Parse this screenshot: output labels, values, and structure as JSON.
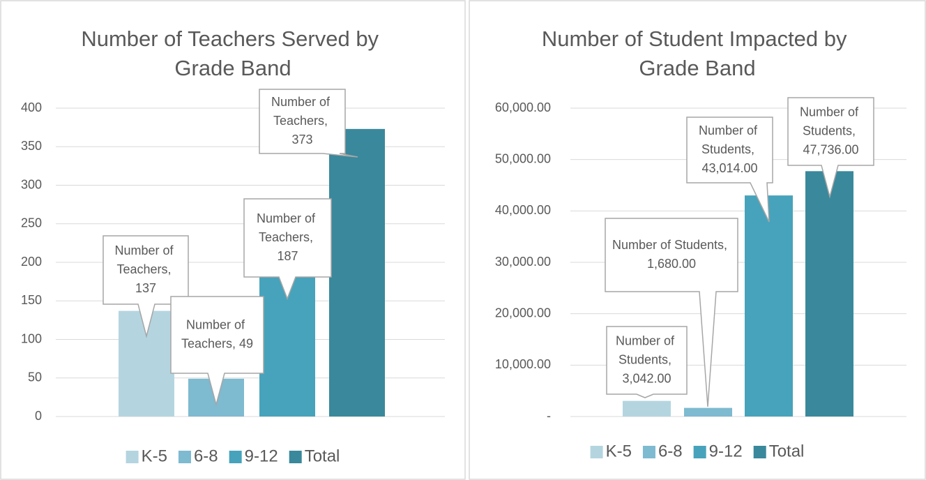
{
  "chart_data": [
    {
      "type": "bar",
      "title": "Number of Teachers Served by Grade Band",
      "series": [
        {
          "name": "K-5",
          "color": "#b4d5e0",
          "values": [
            137
          ],
          "value_labels": [
            "Number of Teachers, 137"
          ]
        },
        {
          "name": "6-8",
          "color": "#7ebad0",
          "values": [
            49
          ],
          "value_labels": [
            "Number of Teachers, 49"
          ]
        },
        {
          "name": "9-12",
          "color": "#47a3bb",
          "values": [
            187
          ],
          "value_labels": [
            "Number of Teachers, 187"
          ]
        },
        {
          "name": "Total",
          "color": "#3a889b",
          "values": [
            373
          ],
          "value_labels": [
            "Number of Teachers, 373"
          ]
        }
      ],
      "ylim": [
        0,
        400
      ],
      "yticks": [
        0,
        50,
        100,
        150,
        200,
        250,
        300,
        350,
        400
      ],
      "grid": true,
      "legend": "bottom"
    },
    {
      "type": "bar",
      "title": "Number of Student Impacted by Grade Band",
      "series": [
        {
          "name": "K-5",
          "color": "#b4d5e0",
          "values": [
            3042
          ],
          "value_labels": [
            "Number of Students, 3,042.00"
          ]
        },
        {
          "name": "6-8",
          "color": "#7ebad0",
          "values": [
            1680
          ],
          "value_labels": [
            "Number of Students, 1,680.00"
          ]
        },
        {
          "name": "9-12",
          "color": "#47a3bb",
          "values": [
            43014
          ],
          "value_labels": [
            "Number of Students, 43,014.00"
          ]
        },
        {
          "name": "Total",
          "color": "#3a889b",
          "values": [
            47736
          ],
          "value_labels": [
            "Number of Students, 47,736.00"
          ]
        }
      ],
      "ylim": [
        0,
        60000
      ],
      "yticks": [
        {
          "value": 0,
          "label": "-"
        },
        {
          "value": 10000,
          "label": "10,000.00"
        },
        {
          "value": 20000,
          "label": "20,000.00"
        },
        {
          "value": 30000,
          "label": "30,000.00"
        },
        {
          "value": 40000,
          "label": "40,000.00"
        },
        {
          "value": 50000,
          "label": "50,000.00"
        },
        {
          "value": 60000,
          "label": "60,000.00"
        }
      ],
      "grid": true,
      "legend": "bottom"
    }
  ]
}
